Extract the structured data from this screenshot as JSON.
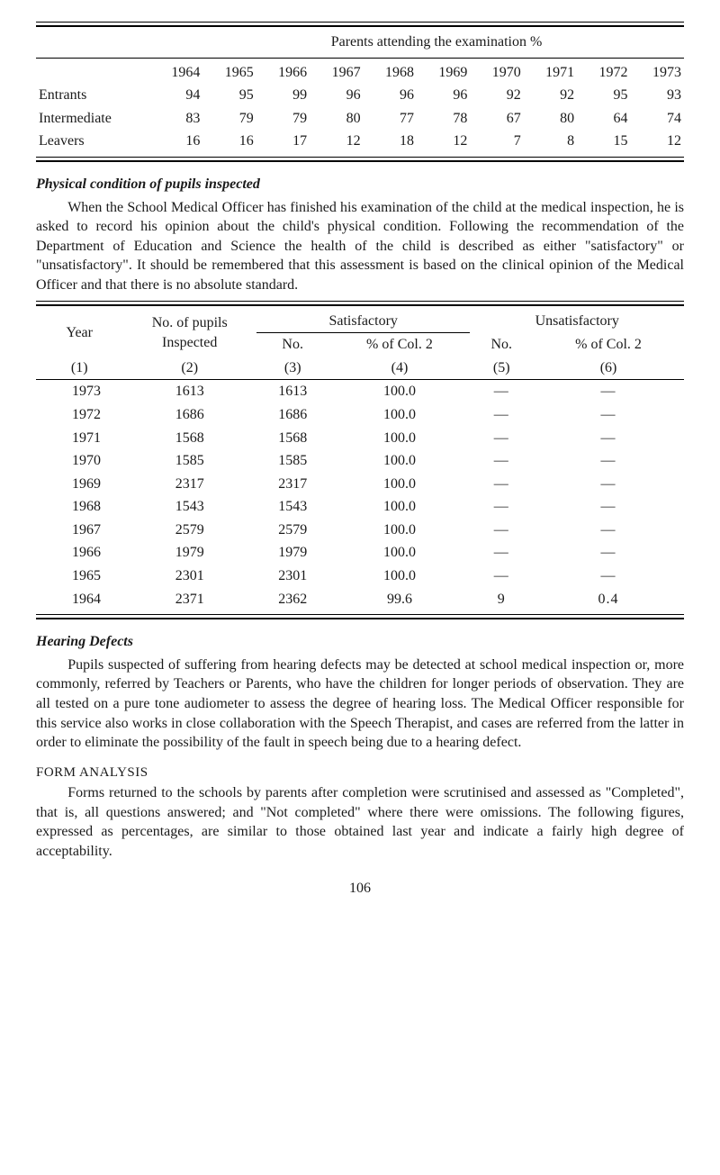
{
  "table1": {
    "title": "Parents attending the examination %",
    "years": [
      "1964",
      "1965",
      "1966",
      "1967",
      "1968",
      "1969",
      "1970",
      "1971",
      "1972",
      "1973"
    ],
    "rows": [
      {
        "label": "Entrants",
        "values": [
          "94",
          "95",
          "99",
          "96",
          "96",
          "96",
          "92",
          "92",
          "95",
          "93"
        ]
      },
      {
        "label": "Intermediate",
        "values": [
          "83",
          "79",
          "79",
          "80",
          "77",
          "78",
          "67",
          "80",
          "64",
          "74"
        ]
      },
      {
        "label": "Leavers",
        "values": [
          "16",
          "16",
          "17",
          "12",
          "18",
          "12",
          "7",
          "8",
          "15",
          "12"
        ]
      }
    ]
  },
  "section1": {
    "heading": "Physical condition of pupils inspected",
    "para": "When the School Medical Officer has finished his examination of the child at the medical inspection, he is asked to record his opinion about the child's physical condition. Following the recommendation of the Department of Education and Science the health of the child is described as either \"satisfactory\" or \"unsatisfactory\". It should be remembered that this assessment is based on the clinical opinion of the Medical Officer and that there is no absolute standard."
  },
  "table2": {
    "headers": {
      "year": "Year",
      "inspected": "No. of pupils Inspected",
      "sat": "Satisfactory",
      "unsat": "Unsatisfactory",
      "no": "No.",
      "pctCol2": "% of Col. 2",
      "c1": "(1)",
      "c2": "(2)",
      "c3": "(3)",
      "c4": "(4)",
      "c5": "(5)",
      "c6": "(6)"
    },
    "rows": [
      {
        "year": "1973",
        "inspected": "1613",
        "satNo": "1613",
        "satPct": "100.0",
        "unsatNo": "—",
        "unsatPct": "—"
      },
      {
        "year": "1972",
        "inspected": "1686",
        "satNo": "1686",
        "satPct": "100.0",
        "unsatNo": "—",
        "unsatPct": "—"
      },
      {
        "year": "1971",
        "inspected": "1568",
        "satNo": "1568",
        "satPct": "100.0",
        "unsatNo": "—",
        "unsatPct": "—"
      },
      {
        "year": "1970",
        "inspected": "1585",
        "satNo": "1585",
        "satPct": "100.0",
        "unsatNo": "—",
        "unsatPct": "—"
      },
      {
        "year": "1969",
        "inspected": "2317",
        "satNo": "2317",
        "satPct": "100.0",
        "unsatNo": "—",
        "unsatPct": "—"
      },
      {
        "year": "1968",
        "inspected": "1543",
        "satNo": "1543",
        "satPct": "100.0",
        "unsatNo": "—",
        "unsatPct": "—"
      },
      {
        "year": "1967",
        "inspected": "2579",
        "satNo": "2579",
        "satPct": "100.0",
        "unsatNo": "—",
        "unsatPct": "—"
      },
      {
        "year": "1966",
        "inspected": "1979",
        "satNo": "1979",
        "satPct": "100.0",
        "unsatNo": "—",
        "unsatPct": "—"
      },
      {
        "year": "1965",
        "inspected": "2301",
        "satNo": "2301",
        "satPct": "100.0",
        "unsatNo": "—",
        "unsatPct": "—"
      },
      {
        "year": "1964",
        "inspected": "2371",
        "satNo": "2362",
        "satPct": "99.6",
        "unsatNo": "9",
        "unsatPct": "0.4"
      }
    ]
  },
  "section2": {
    "heading": "Hearing Defects",
    "para": "Pupils suspected of suffering from hearing defects may be detected at school medical inspection or, more commonly, referred by Teachers or Parents, who have the children for longer periods of observation. They are all tested on a pure tone audiometer to assess the degree of hearing loss. The Medical Officer responsible for this service also works in close collaboration with the Speech Therapist, and cases are referred from the latter in order to eliminate the possibility of the fault in speech being due to a hearing defect."
  },
  "section3": {
    "heading": "FORM ANALYSIS",
    "para": "Forms returned to the schools by parents after completion were scrutinised and assessed as \"Completed\", that is, all questions answered; and \"Not completed\" where there were omissions. The following figures, expressed as percentages, are similar to those obtained last year and indicate a fairly high degree of acceptability."
  },
  "pageNumber": "106"
}
